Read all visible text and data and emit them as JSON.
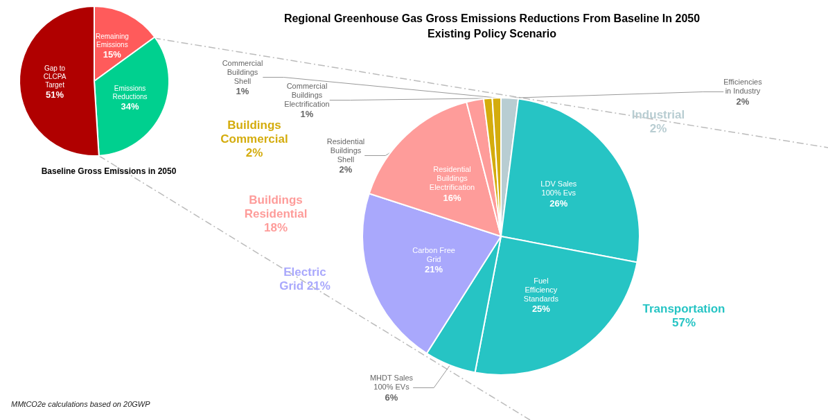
{
  "chart_data": [
    {
      "type": "pie",
      "title": "Baseline Gross Emissions in 2050",
      "categories": [
        "Remaining Emissions",
        "Emissions Reductions",
        "Gap to CLCPA Target"
      ],
      "values": [
        15,
        34,
        51
      ],
      "value_labels": [
        "15%",
        "34%",
        "51%"
      ],
      "colors": [
        "#ff5b5b",
        "#00d08f",
        "#b00000"
      ],
      "annotations": [
        "MMtCO2e calculations based on 20GWP"
      ]
    },
    {
      "type": "pie",
      "title": "Regional Greenhouse Gas Gross Emissions Reductions From Baseline In 2050",
      "subtitle": "Existing Policy Scenario",
      "categories": [
        "Efficiencies in Industry",
        "LDV Sales 100% Evs",
        "Fuel Efficiency Standards",
        "MHDT Sales 100% EVs",
        "Carbon Free Grid",
        "Residential Buildings Electrification",
        "Residential Buildings Shell",
        "Commercial Buildings Electrification",
        "Commercial Buildings Shell"
      ],
      "values": [
        2,
        26,
        25,
        6,
        21,
        16,
        2,
        1,
        1
      ],
      "value_labels": [
        "2%",
        "26%",
        "25%",
        "6%",
        "21%",
        "16%",
        "2%",
        "1%",
        "1%"
      ],
      "colors": [
        "#b8cdd2",
        "#26c4c4",
        "#26c4c4",
        "#26c4c4",
        "#a9a8fc",
        "#fe9c9a",
        "#fe9c9a",
        "#d4ac0d",
        "#d4ac0d"
      ],
      "annotations": [
        "Industrial 2%",
        "Transportation 57%",
        "Electric Grid 21%",
        "Buildings Residential 18%",
        "Buildings Commercial 2%"
      ]
    }
  ]
}
